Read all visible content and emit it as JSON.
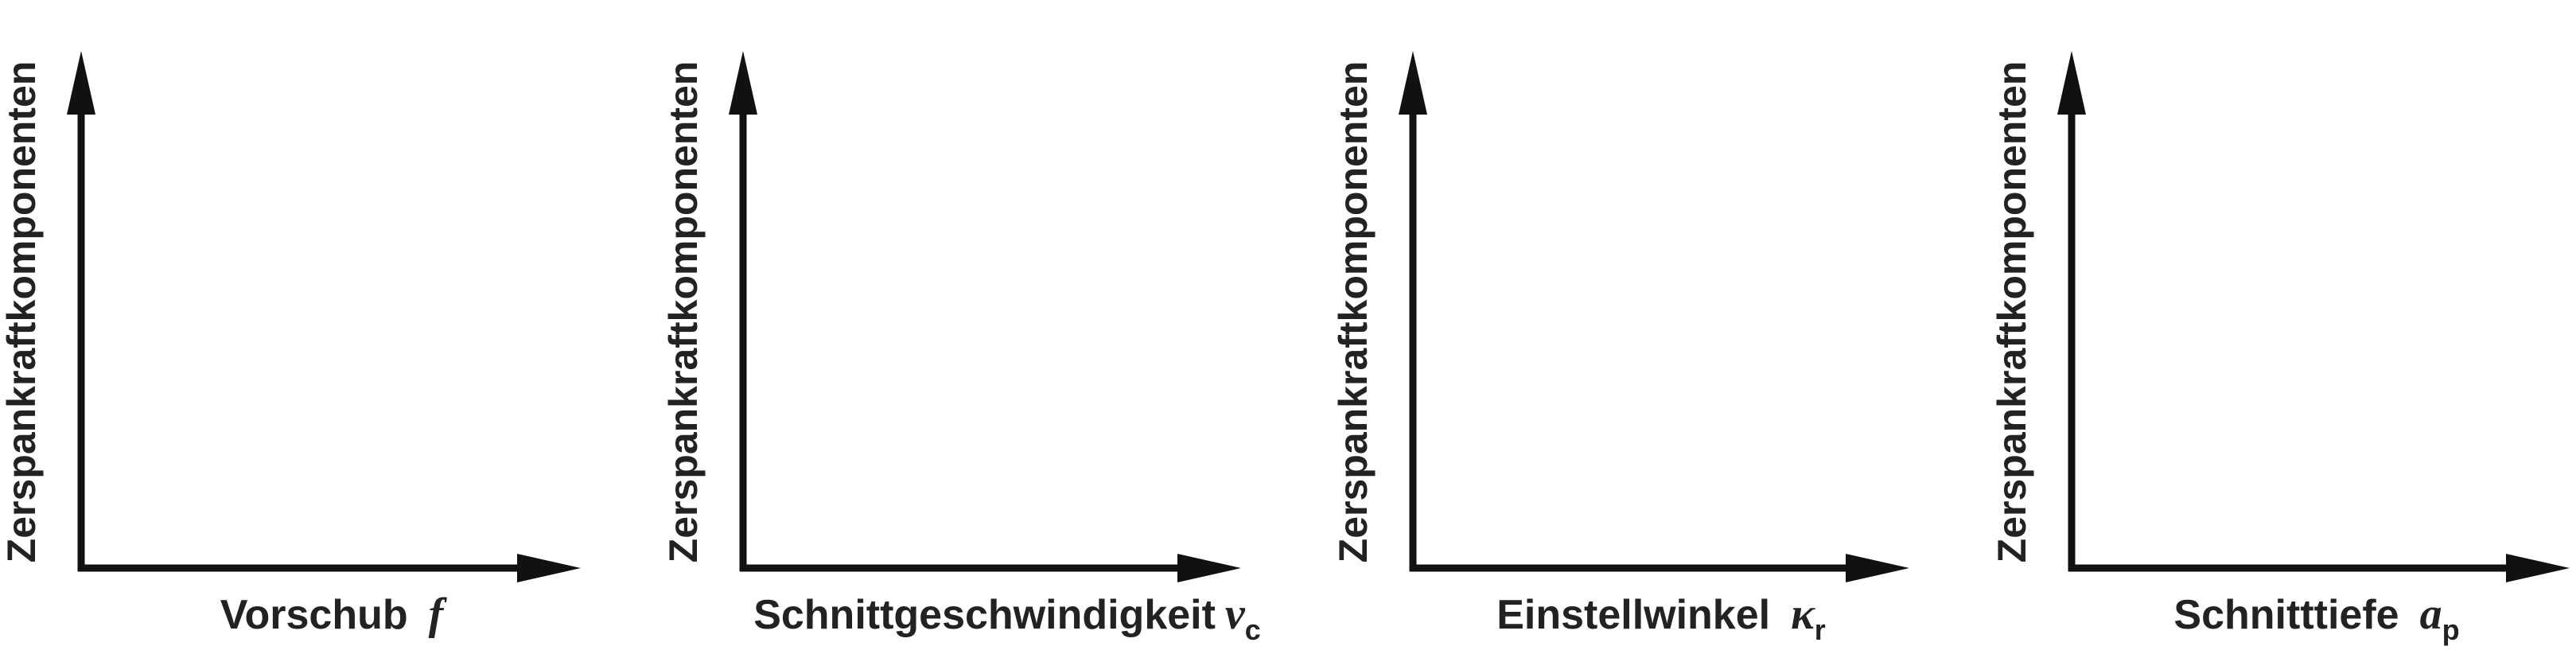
{
  "panels": [
    {
      "ylabel": "Zerspankraftkomponenten",
      "xlabel_text": "Vorschub",
      "xlabel_symbol": "f",
      "xlabel_subscript": ""
    },
    {
      "ylabel": "Zerspankraftkomponenten",
      "xlabel_text": "Schnittgeschwindigkeit",
      "xlabel_symbol": "v",
      "xlabel_subscript": "c"
    },
    {
      "ylabel": "Zerspankraftkomponenten",
      "xlabel_text": "Einstellwinkel",
      "xlabel_symbol": "κ",
      "xlabel_subscript": "r"
    },
    {
      "ylabel": "Zerspankraftkomponenten",
      "xlabel_text": "Schnitttiefe",
      "xlabel_symbol": "a",
      "xlabel_subscript": "p"
    }
  ],
  "colors": {
    "axis": "#111111",
    "text": "#222222",
    "background": "#ffffff"
  }
}
